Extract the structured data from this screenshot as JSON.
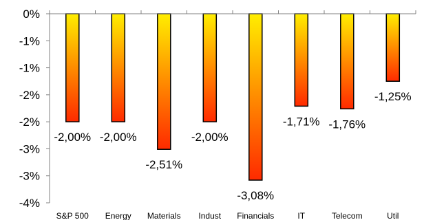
{
  "chart_data": {
    "type": "bar",
    "categories": [
      "S&P 500",
      "Energy",
      "Materials",
      "Indust",
      "Financials",
      "IT",
      "Telecom",
      "Util"
    ],
    "values": [
      -2.0,
      -2.0,
      -2.51,
      -2.0,
      -3.08,
      -1.71,
      -1.76,
      -1.25
    ],
    "data_labels": [
      "-2,00%",
      "-2,00%",
      "-2,51%",
      "-2,00%",
      "-3,08%",
      "-1,71%",
      "-1,76%",
      "-1,25%"
    ],
    "y_tick_labels": [
      "0%",
      "-1%",
      "-1%",
      "-2%",
      "-2%",
      "-3%",
      "-3%",
      "-4%"
    ],
    "ylim": [
      -3.5,
      0
    ],
    "grid": false,
    "legend": "none",
    "colors": {
      "bar_top": "#ffee00",
      "bar_bottom": "#ff2a00",
      "bar_outline": "#000000",
      "axis": "#808080"
    }
  }
}
